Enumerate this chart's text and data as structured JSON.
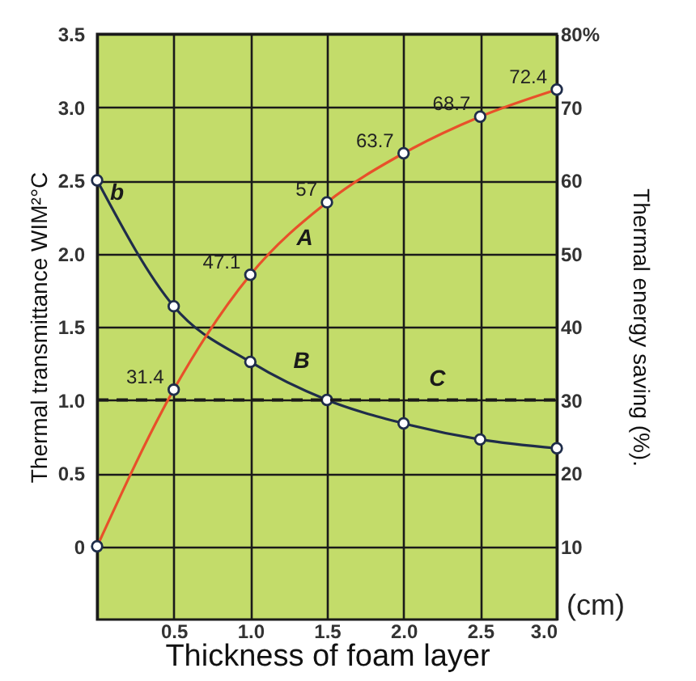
{
  "chart_data": {
    "type": "line",
    "xlabel": "Thickness of foam layer",
    "ylabel": "Thermal transmittance WIM²°C",
    "y2label": "Thermal energy saving (%).",
    "xlim": [
      0,
      3.0
    ],
    "xticks": [
      {
        "value": 0,
        "label": null
      },
      0.5,
      {
        "value": 1,
        "label": "1.0"
      },
      1.5,
      {
        "value": 2,
        "label": "2.0"
      },
      2.5,
      {
        "value": 3,
        "label": "3.0"
      }
    ],
    "ylim": [
      -0.5,
      3.5
    ],
    "yticks": [
      {
        "value": 0,
        "label": "0"
      },
      0.5,
      {
        "value": 1,
        "label": "1.0"
      },
      1.5,
      {
        "value": 2,
        "label": "2.0"
      },
      2.5,
      {
        "value": 3,
        "label": "3.0"
      },
      3.5
    ],
    "y2lim": [
      0,
      80
    ],
    "y2ticks": [
      10,
      20,
      30,
      40,
      50,
      60,
      70,
      {
        "value": 80,
        "label": "80%"
      }
    ],
    "grid": true,
    "marker": "circle",
    "line_style": "solid",
    "series": [
      {
        "name": "B",
        "color": "#1f2d4a",
        "x": [
          0,
          0.5,
          1.0,
          1.5,
          2.0,
          2.5,
          3.0
        ],
        "values": [
          2.5,
          1.64,
          1.26,
          1.0,
          0.84,
          0.73,
          0.67
        ]
      },
      {
        "name": "A",
        "color": "#e8502a",
        "axis": "y2",
        "x": [
          0,
          0.5,
          1.0,
          1.5,
          2.0,
          2.5,
          3.0
        ],
        "values": [
          10,
          31.4,
          47.1,
          57,
          63.7,
          68.7,
          72.4
        ],
        "value_labels": [
          null,
          "31.4",
          "47.1",
          "57",
          "63.7",
          "68.7",
          "72.4"
        ]
      }
    ],
    "ref_lines": [
      {
        "axis": "y",
        "value": 1.0,
        "label": "C",
        "color": "#1a1a1a",
        "line_style": "dashed"
      }
    ],
    "annotations": [
      {
        "text": "b",
        "x": 0,
        "y": 2.5
      },
      "(cm)"
    ]
  }
}
